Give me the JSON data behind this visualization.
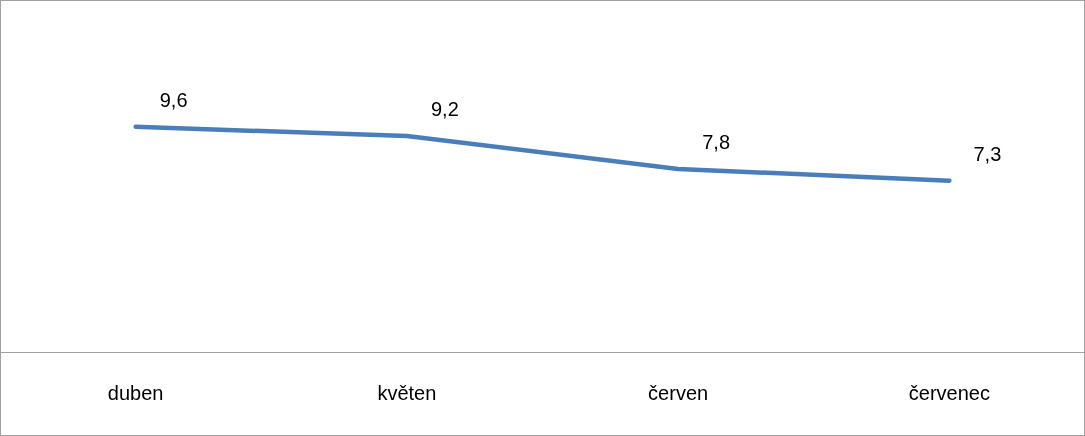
{
  "chart_data": {
    "type": "line",
    "categories": [
      "duben",
      "květen",
      "červen",
      "červenec"
    ],
    "series": [
      {
        "color": "#4a7ebb",
        "values": [
          9.6,
          9.2,
          7.8,
          7.3
        ],
        "value_labels": [
          "9,6",
          "9,2",
          "7,8",
          "7,3"
        ]
      }
    ],
    "ylim": [
      0,
      15
    ],
    "tick_labels": "x",
    "grid": false,
    "legend": false,
    "marker": "none",
    "line_style": "solid"
  }
}
